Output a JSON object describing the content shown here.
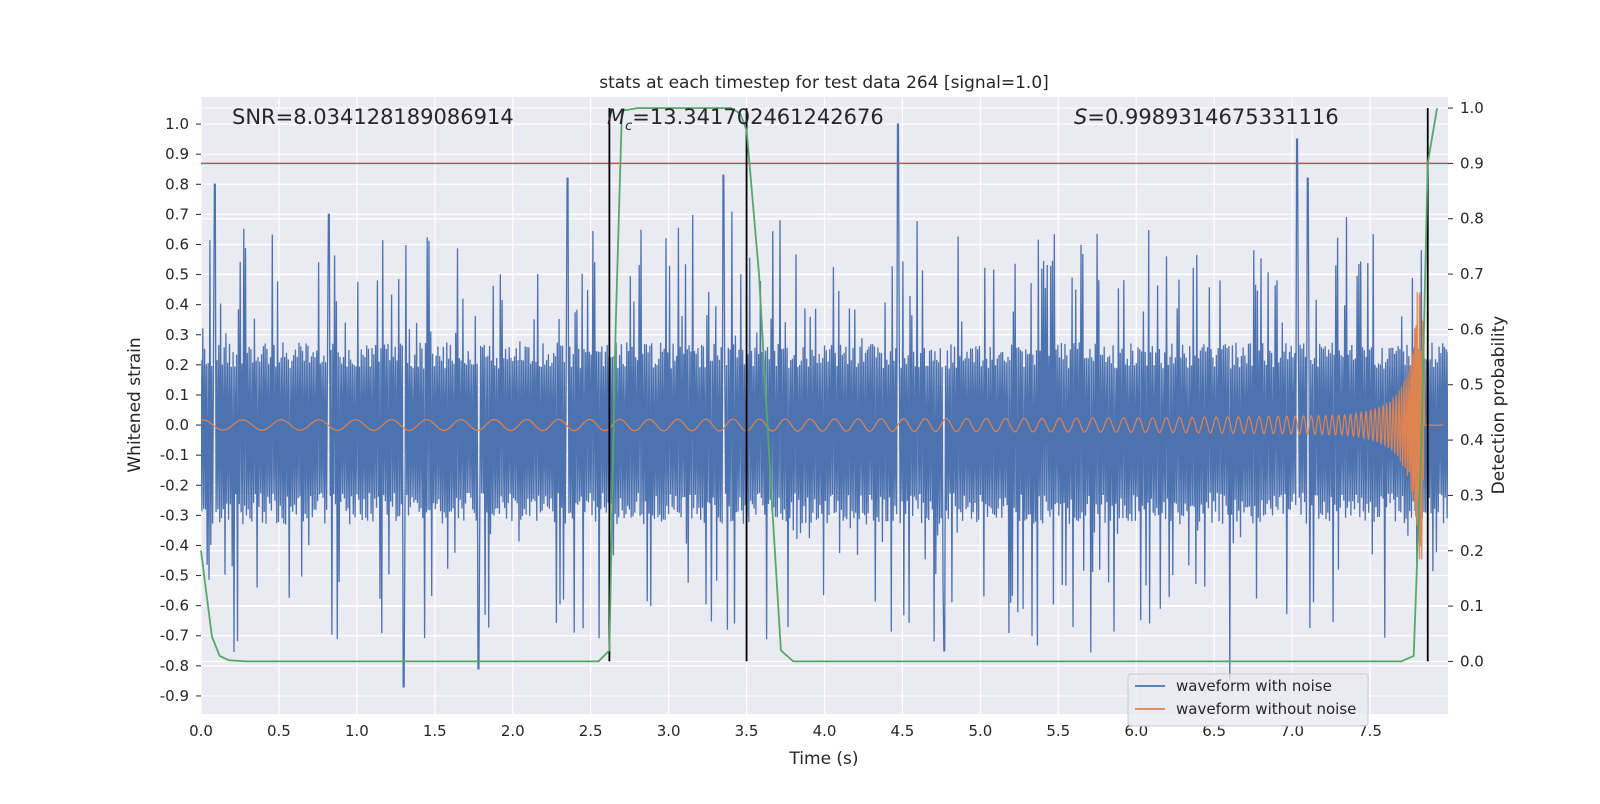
{
  "chart_data": {
    "type": "line",
    "title": "stats at each timestep for test data 264 [signal=1.0]",
    "xlabel": "Time (s)",
    "ylabel": "Whitened strain",
    "y2label": "Detection probability",
    "xlim": [
      0.0,
      8.0
    ],
    "ylim": [
      -0.96,
      1.09
    ],
    "y2lim": [
      -0.095,
      1.02
    ],
    "xticks": [
      "0.0",
      "0.5",
      "1.0",
      "1.5",
      "2.0",
      "2.5",
      "3.0",
      "3.5",
      "4.0",
      "4.5",
      "5.0",
      "5.5",
      "6.0",
      "6.5",
      "7.0",
      "7.5"
    ],
    "yticks": [
      "1.0",
      "0.9",
      "0.8",
      "0.7",
      "0.6",
      "0.5",
      "0.4",
      "0.3",
      "0.2",
      "0.1",
      "0.0",
      "-0.1",
      "-0.2",
      "-0.3",
      "-0.4",
      "-0.5",
      "-0.6",
      "-0.7",
      "-0.8",
      "-0.9"
    ],
    "y2ticks": [
      "1.0",
      "0.9",
      "0.8",
      "0.7",
      "0.6",
      "0.5",
      "0.4",
      "0.3",
      "0.2",
      "0.1",
      "0.0"
    ],
    "annotations": {
      "snr": "SNR=8.034128189086914",
      "mc_symbol": "M",
      "mc_sub": "c",
      "mc_value": "=13.341702461242676",
      "s_symbol": "S",
      "s_value": "=0.9989314675331116"
    },
    "threshold": 0.9,
    "vlines": [
      2.62,
      3.5,
      7.87
    ],
    "noisy_envelope": {
      "typical_upper": 0.25,
      "typical_lower": -0.3,
      "peak_spikes": [
        {
          "x": 0.09,
          "y": 0.8
        },
        {
          "x": 0.82,
          "y": 0.7
        },
        {
          "x": 1.3,
          "y": -0.87
        },
        {
          "x": 1.78,
          "y": -0.81
        },
        {
          "x": 2.35,
          "y": 0.82
        },
        {
          "x": 3.35,
          "y": 0.83
        },
        {
          "x": 4.47,
          "y": 1.0
        },
        {
          "x": 4.77,
          "y": -0.75
        },
        {
          "x": 6.6,
          "y": -0.85
        },
        {
          "x": 7.03,
          "y": 0.95
        },
        {
          "x": 7.1,
          "y": 0.82
        }
      ]
    },
    "probability": {
      "x": [
        0.0,
        0.07,
        0.12,
        0.18,
        0.3,
        2.55,
        2.62,
        2.66,
        2.7,
        2.8,
        3.4,
        3.46,
        3.5,
        3.58,
        3.66,
        3.72,
        3.8,
        7.7,
        7.78,
        7.83,
        7.87,
        7.93
      ],
      "y": [
        0.2,
        0.045,
        0.01,
        0.002,
        0.0,
        0.0,
        0.02,
        0.6,
        0.995,
        1.0,
        1.0,
        0.99,
        0.96,
        0.7,
        0.3,
        0.02,
        0.0,
        0.0,
        0.01,
        0.4,
        0.9,
        1.0
      ]
    },
    "series": [
      {
        "name": "waveform with noise",
        "color": "#4c72b0"
      },
      {
        "name": "waveform without noise",
        "color": "#dd8452"
      },
      {
        "name": "",
        "color": "#55a868"
      }
    ],
    "colors": {
      "threshold": "#c44e52",
      "vline": "#000000",
      "background": "#eaeaf2",
      "grid": "#ffffff"
    },
    "legend_position": "lower-right",
    "grid": true
  }
}
